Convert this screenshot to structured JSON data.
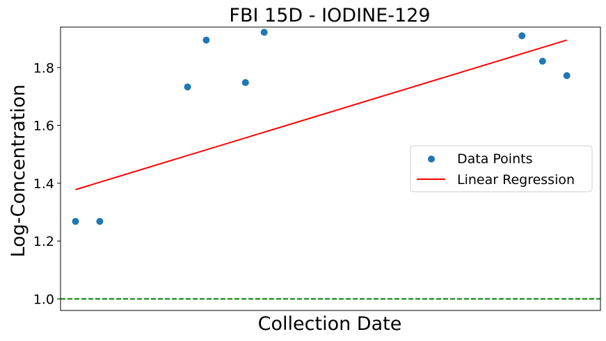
{
  "chart_data": {
    "type": "scatter",
    "title": "FBI 15D - IODINE-129",
    "xlabel": "Collection Date",
    "ylabel": "Log-Concentration",
    "x_ticks_shown": false,
    "ylim": [
      0.96,
      1.94
    ],
    "yticks": [
      1.0,
      1.2,
      1.4,
      1.6,
      1.8
    ],
    "ytick_labels": [
      "1.0",
      "1.2",
      "1.4",
      "1.6",
      "1.8"
    ],
    "xlim": [
      -0.08,
      2.81
    ],
    "series": [
      {
        "name": "Data Points",
        "kind": "scatter",
        "color": "#1f77b4",
        "points": [
          {
            "x": 0.0,
            "y": 1.268
          },
          {
            "x": 0.13,
            "y": 1.268
          },
          {
            "x": 0.6,
            "y": 1.733
          },
          {
            "x": 0.7,
            "y": 1.895
          },
          {
            "x": 0.91,
            "y": 1.748
          },
          {
            "x": 1.01,
            "y": 1.922
          },
          {
            "x": 2.39,
            "y": 1.91
          },
          {
            "x": 2.5,
            "y": 1.822
          },
          {
            "x": 2.63,
            "y": 1.772
          }
        ]
      },
      {
        "name": "Linear Regression",
        "kind": "line",
        "color": "#ff0000",
        "points": [
          {
            "x": 0.0,
            "y": 1.378
          },
          {
            "x": 2.63,
            "y": 1.895
          }
        ]
      }
    ],
    "reference_lines": [
      {
        "orientation": "horizontal",
        "y": 1.0,
        "color": "#008000",
        "style": "dashed"
      }
    ],
    "legend": {
      "placement": "center-right",
      "entries": [
        "Data Points",
        "Linear Regression"
      ]
    },
    "grid": false
  }
}
